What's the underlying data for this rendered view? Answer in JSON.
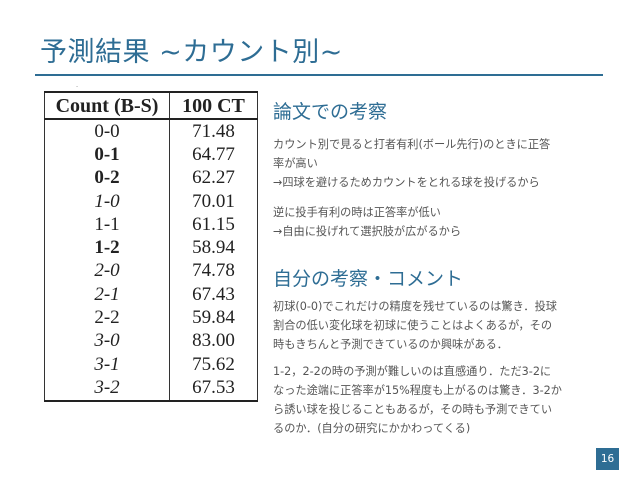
{
  "title": "予測結果 ~カウント別~",
  "table": {
    "header": [
      "Count (B-S)",
      "100 CT"
    ],
    "rows": [
      {
        "count": "0-0",
        "value": "71.48",
        "style": "r"
      },
      {
        "count": "0-1",
        "value": "64.77",
        "style": "b"
      },
      {
        "count": "0-2",
        "value": "62.27",
        "style": "b"
      },
      {
        "count": "1-0",
        "value": "70.01",
        "style": "i"
      },
      {
        "count": "1-1",
        "value": "61.15",
        "style": "r"
      },
      {
        "count": "1-2",
        "value": "58.94",
        "style": "b"
      },
      {
        "count": "2-0",
        "value": "74.78",
        "style": "i"
      },
      {
        "count": "2-1",
        "value": "67.43",
        "style": "i"
      },
      {
        "count": "2-2",
        "value": "59.84",
        "style": "r"
      },
      {
        "count": "3-0",
        "value": "83.00",
        "style": "i"
      },
      {
        "count": "3-1",
        "value": "75.62",
        "style": "i"
      },
      {
        "count": "3-2",
        "value": "67.53",
        "style": "i"
      }
    ]
  },
  "paper": {
    "heading": "論文での考察",
    "lines_a": [
      "カウント別で見ると打者有利(ボール先行)のときに正答",
      "率が高い",
      "→四球を避けるためカウントをとれる球を投げるから"
    ],
    "lines_b": [
      "逆に投手有利の時は正答率が低い",
      "→自由に投げれて選択肢が広がるから"
    ]
  },
  "own": {
    "heading": "自分の考察・コメント",
    "lines_a": [
      "初球(0-0)でこれだけの精度を残せているのは驚き．投球",
      "割合の低い変化球を初球に使うことはよくあるが，その",
      "時もきちんと予測できているのか興味がある．"
    ],
    "lines_b": [
      "1-2，2-2の時の予測が難しいのは直感通り．ただ3-2に",
      "なった途端に正答率が15%程度も上がるのは驚き．3-2か",
      "ら誘い球を投じることもあるが，その時も予測できてい",
      "るのか．(自分の研究にかかわってくる)"
    ]
  },
  "page_number": "16",
  "colors": {
    "accent": "#2e6d94",
    "text": "#555555"
  }
}
